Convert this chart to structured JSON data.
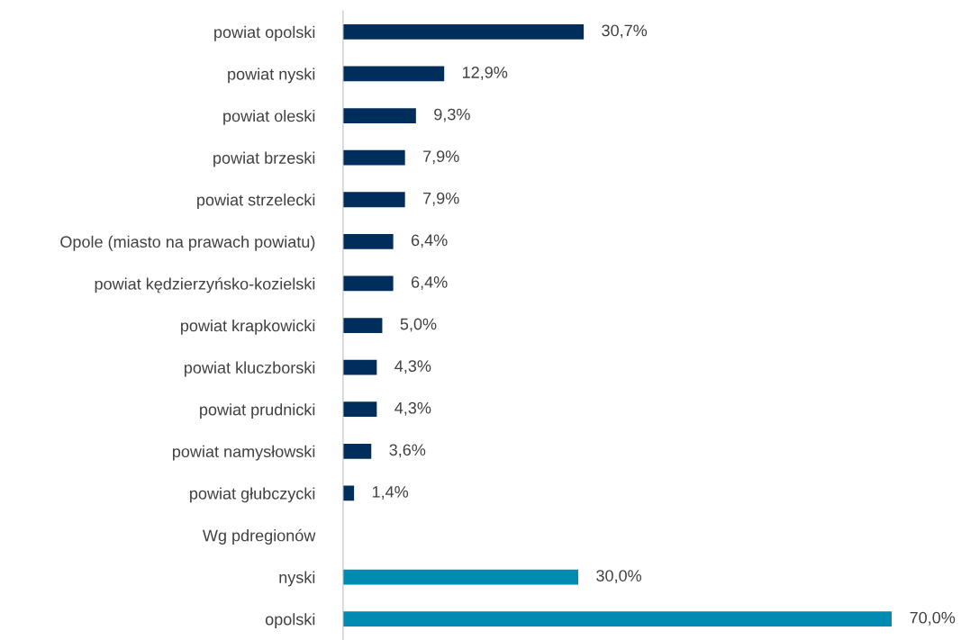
{
  "chart_data": {
    "type": "bar",
    "orientation": "horizontal",
    "categories": [
      "powiat opolski",
      "powiat nyski",
      "powiat oleski",
      "powiat brzeski",
      "powiat strzelecki",
      "Opole (miasto na prawach powiatu)",
      "powiat kędzierzyńsko-kozielski",
      "powiat krapkowicki",
      "powiat kluczborski",
      "powiat prudnicki",
      "powiat namysłowski",
      "powiat głubczycki",
      "Wg pdregionów",
      "nyski",
      "opolski"
    ],
    "values": [
      30.7,
      12.9,
      9.3,
      7.9,
      7.9,
      6.4,
      6.4,
      5.0,
      4.3,
      4.3,
      3.6,
      1.4,
      null,
      30.0,
      70.0
    ],
    "colors": [
      "#002e5c",
      "#002e5c",
      "#002e5c",
      "#002e5c",
      "#002e5c",
      "#002e5c",
      "#002e5c",
      "#002e5c",
      "#002e5c",
      "#002e5c",
      "#002e5c",
      "#002e5c",
      "#002e5c",
      "#008bb2",
      "#008bb2"
    ],
    "value_labels": [
      "30,7%",
      "12,9%",
      "9,3%",
      "7,9%",
      "7,9%",
      "6,4%",
      "6,4%",
      "5,0%",
      "4,3%",
      "4,3%",
      "3,6%",
      "1,4%",
      null,
      "30,0%",
      "70,0%"
    ],
    "grid": false,
    "legend": false
  }
}
